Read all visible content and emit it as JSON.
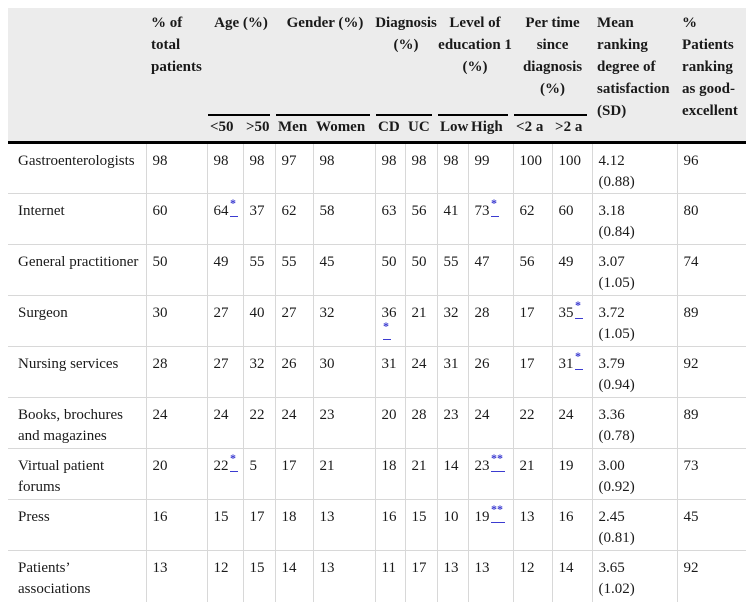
{
  "table": {
    "header": {
      "label": "",
      "total": "% of total patients",
      "age": "Age (%)",
      "gender": "Gender (%)",
      "diagnosis": "Diagnosis (%)",
      "education": "Level of education 1 (%)",
      "pertime": "Per time since diagnosis (%)",
      "satisfaction": "Mean ranking degree of satisfaction (SD)",
      "good": "% Patients ranking as good-excellent"
    },
    "subheaders": [
      "<50",
      ">50",
      "Men",
      "Women",
      "CD",
      "UC",
      "Low",
      "High",
      "<2 a",
      ">2 a"
    ],
    "rows": [
      {
        "label": "Gastroenterologists",
        "cells": [
          "98",
          "98",
          "98",
          "97",
          "98",
          "98",
          "98",
          "98",
          "99",
          "100",
          "100"
        ],
        "mean": "4.12",
        "sd": "(0.88)",
        "good": "96"
      },
      {
        "label": "Internet",
        "cells": [
          "60",
          "64*",
          "37",
          "62",
          "58",
          "63",
          "56",
          "41",
          "73*",
          "62",
          "60"
        ],
        "mean": "3.18",
        "sd": "(0.84)",
        "good": "80"
      },
      {
        "label": "General practitioner",
        "cells": [
          "50",
          "49",
          "55",
          "55",
          "45",
          "50",
          "50",
          "55",
          "47",
          "56",
          "49"
        ],
        "mean": "3.07",
        "sd": "(1.05)",
        "good": "74"
      },
      {
        "label": "Surgeon",
        "cells": [
          "30",
          "27",
          "40",
          "27",
          "32",
          "36*",
          "21",
          "32",
          "28",
          "17",
          "35*"
        ],
        "mean": "3.72",
        "sd": "(1.05)",
        "good": "89"
      },
      {
        "label": "Nursing services",
        "cells": [
          "28",
          "27",
          "32",
          "26",
          "30",
          "31",
          "24",
          "31",
          "26",
          "17",
          "31*"
        ],
        "mean": "3.79",
        "sd": "(0.94)",
        "good": "92"
      },
      {
        "label": "Books, brochures and magazines",
        "cells": [
          "24",
          "24",
          "22",
          "24",
          "23",
          "20",
          "28",
          "23",
          "24",
          "22",
          "24"
        ],
        "mean": "3.36",
        "sd": "(0.78)",
        "good": "89"
      },
      {
        "label": "Virtual patient forums",
        "cells": [
          "20",
          "22*",
          "5",
          "17",
          "21",
          "18",
          "21",
          "14",
          "23**",
          "21",
          "19"
        ],
        "mean": "3.00",
        "sd": "(0.92)",
        "good": "73"
      },
      {
        "label": "Press",
        "cells": [
          "16",
          "15",
          "17",
          "18",
          "13",
          "16",
          "15",
          "10",
          "19**",
          "13",
          "16"
        ],
        "mean": "2.45",
        "sd": "(0.81)",
        "good": "45"
      },
      {
        "label": "Patients’ associations",
        "cells": [
          "13",
          "12",
          "15",
          "14",
          "13",
          "11",
          "17",
          "13",
          "13",
          "12",
          "14"
        ],
        "mean": "3.65",
        "sd": "(1.02)",
        "good": "92"
      }
    ]
  },
  "colors": {
    "header_background": "#ececec",
    "heavy_rule": "#000000",
    "light_rule": "#d8d8d8",
    "footnote_link_blue": "#3b3bd0",
    "text": "#1a1a1a"
  },
  "footnote_markers": {
    "single": "*",
    "double": "**"
  }
}
